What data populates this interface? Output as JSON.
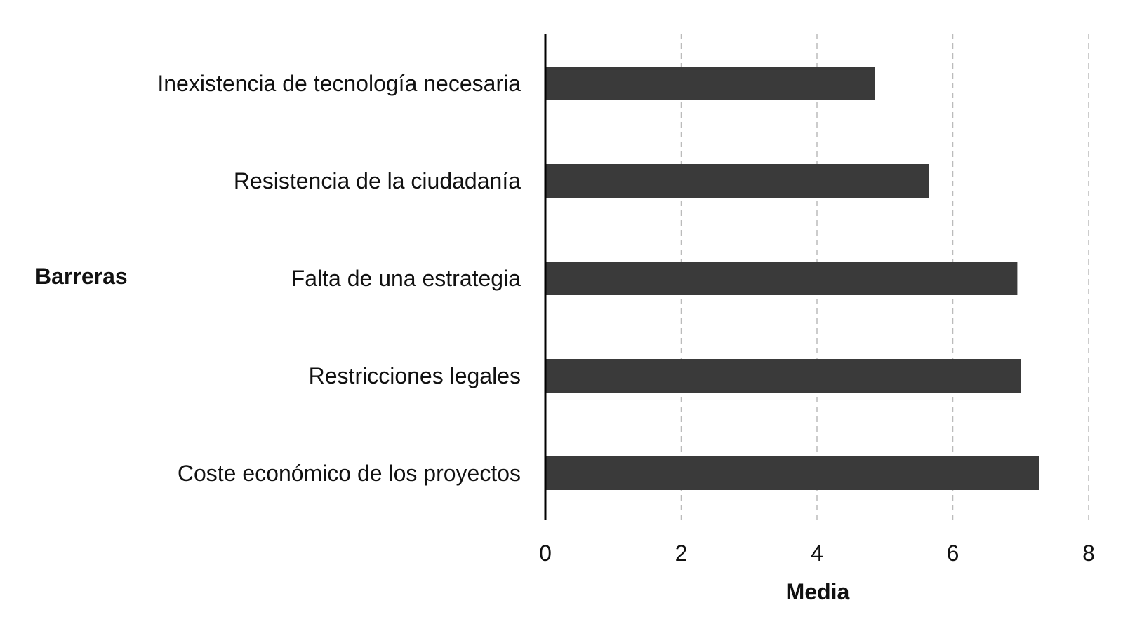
{
  "chart_data": {
    "type": "bar",
    "orientation": "horizontal",
    "categories": [
      "Inexistencia de tecnología necesaria",
      "Resistencia de la ciudadanía",
      "Falta de una estrategia",
      "Restricciones legales",
      "Coste económico de los proyectos"
    ],
    "values": [
      4.85,
      5.65,
      6.95,
      7.0,
      7.27
    ],
    "xlabel": "Media",
    "ylabel": "Barreras",
    "xlim": [
      0,
      8
    ],
    "xticks": [
      "0",
      "2",
      "4",
      "6",
      "8"
    ],
    "grid": "vertical dashed",
    "bar_color": "#3a3a3a",
    "grid_color": "#bbbbbb"
  }
}
